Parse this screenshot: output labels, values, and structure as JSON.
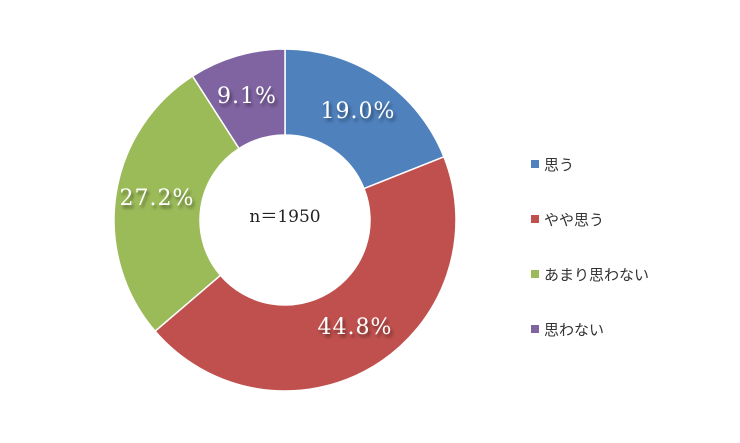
{
  "chart_data": {
    "type": "pie",
    "donut": true,
    "center_label": "n＝1950",
    "legend_position": "right",
    "categories": [
      "思う",
      "やや思う",
      "あまり思わない",
      "思わない"
    ],
    "values": [
      19.0,
      44.8,
      27.2,
      9.1
    ],
    "data_labels": [
      "19.0%",
      "44.8%",
      "27.2%",
      "9.1%"
    ],
    "colors": [
      "#4F81BD",
      "#C0504D",
      "#9BBB59",
      "#8064A2"
    ]
  }
}
